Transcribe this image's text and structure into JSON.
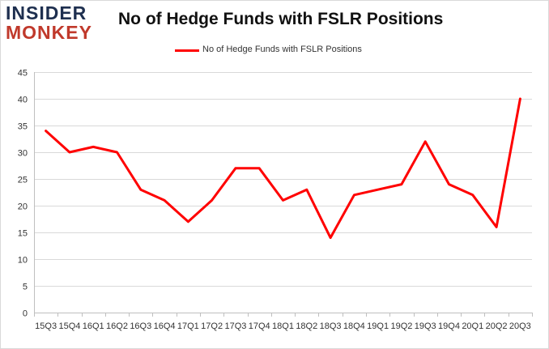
{
  "brand": {
    "line1": "INSIDER",
    "line2": "MONKEY"
  },
  "chart_data": {
    "type": "line",
    "title": "No of Hedge Funds with FSLR Positions",
    "xlabel": "",
    "ylabel": "",
    "categories": [
      "15Q3",
      "15Q4",
      "16Q1",
      "16Q2",
      "16Q3",
      "16Q4",
      "17Q1",
      "17Q2",
      "17Q3",
      "17Q4",
      "18Q1",
      "18Q2",
      "18Q3",
      "18Q4",
      "19Q1",
      "19Q2",
      "19Q3",
      "19Q4",
      "20Q1",
      "20Q2",
      "20Q3"
    ],
    "series": [
      {
        "name": "No of Hedge Funds with FSLR Positions",
        "color": "#ff0000",
        "values": [
          34,
          30,
          31,
          30,
          23,
          21,
          17,
          21,
          27,
          27,
          21,
          23,
          14,
          22,
          23,
          24,
          32,
          24,
          22,
          16,
          40
        ]
      }
    ],
    "ylim": [
      0,
      45
    ],
    "yticks": [
      0,
      5,
      10,
      15,
      20,
      25,
      30,
      35,
      40,
      45
    ],
    "grid": true,
    "legend": "top-center"
  }
}
